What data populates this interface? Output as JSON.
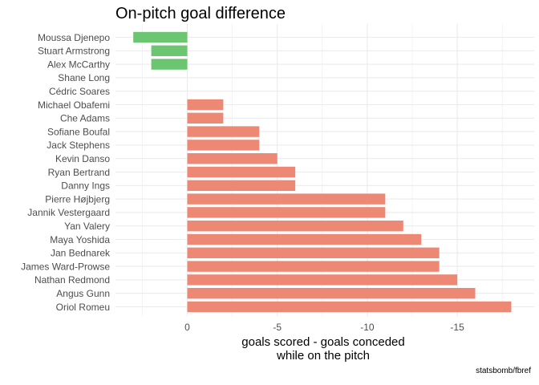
{
  "chart_data": {
    "type": "bar",
    "orientation": "horizontal",
    "title": "On-pitch goal difference",
    "xlabel_lines": [
      "goals scored - goals conceded",
      "while on the pitch"
    ],
    "ylabel": "",
    "caption": "statsbomb/fbref",
    "x_reversed": true,
    "xlim": [
      3,
      -18
    ],
    "x_ticks": [
      0,
      -5,
      -10,
      -15
    ],
    "x_tick_labels": [
      "0",
      "-5",
      "-10",
      "-15"
    ],
    "grid": true,
    "legend": "none",
    "colors": {
      "positive": "#6cc570",
      "negative": "#ec8874",
      "grid": "#ebebeb"
    },
    "categories": [
      "Moussa Djenepo",
      "Stuart Armstrong",
      "Alex McCarthy",
      "Shane Long",
      "Cédric Soares",
      "Michael Obafemi",
      "Che Adams",
      "Sofiane Boufal",
      "Jack Stephens",
      "Kevin Danso",
      "Ryan Bertrand",
      "Danny Ings",
      "Pierre Højbjerg",
      "Jannik Vestergaard",
      "Yan Valery",
      "Maya Yoshida",
      "Jan Bednarek",
      "James Ward-Prowse",
      "Nathan Redmond",
      "Angus Gunn",
      "Oriol Romeu"
    ],
    "values": [
      3,
      2,
      2,
      0,
      0,
      -2,
      -2,
      -4,
      -4,
      -5,
      -6,
      -6,
      -11,
      -11,
      -12,
      -13,
      -14,
      -14,
      -15,
      -16,
      -18
    ]
  }
}
